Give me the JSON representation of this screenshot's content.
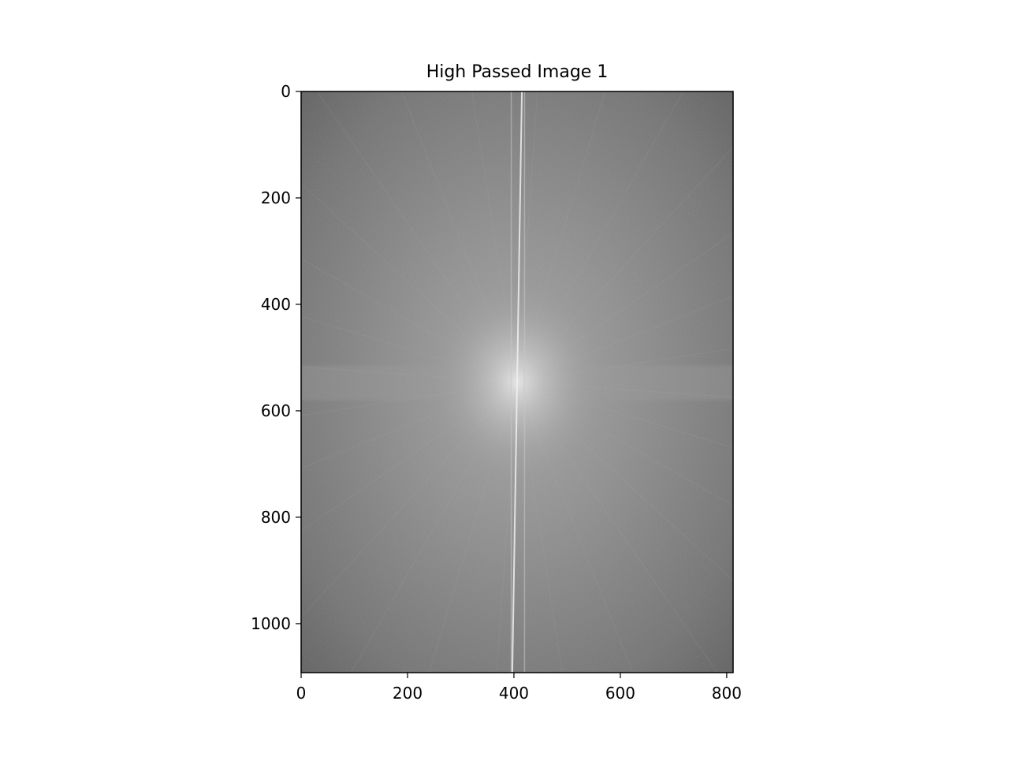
{
  "chart_data": {
    "type": "heatmap",
    "title": "High Passed Image 1",
    "xlabel": "",
    "ylabel": "",
    "colormap": "gray",
    "image_width": 812,
    "image_height": 1092,
    "xlim": [
      0,
      812
    ],
    "ylim": [
      1092,
      0
    ],
    "y_inverted": true,
    "x_ticks": [
      0,
      200,
      400,
      600,
      800
    ],
    "y_ticks": [
      0,
      200,
      400,
      600,
      800,
      1000
    ],
    "x_tick_labels": [
      "0",
      "200",
      "400",
      "600",
      "800"
    ],
    "y_tick_labels": [
      "0",
      "200",
      "400",
      "600",
      "800",
      "1000"
    ],
    "grid": false,
    "legend": "none",
    "features": {
      "spectrum_center": {
        "x": 406,
        "y": 546
      },
      "bright_streak": {
        "x_top": 415,
        "x_bottom": 397
      },
      "faint_parallel_lines": [
        395,
        420
      ],
      "horizontal_band_y": [
        515,
        580
      ]
    },
    "colors": {
      "background": "#7d7d7d",
      "edge": "#555555",
      "center_glow": "#d8d8d8",
      "streak": "#f0f0f0"
    }
  }
}
